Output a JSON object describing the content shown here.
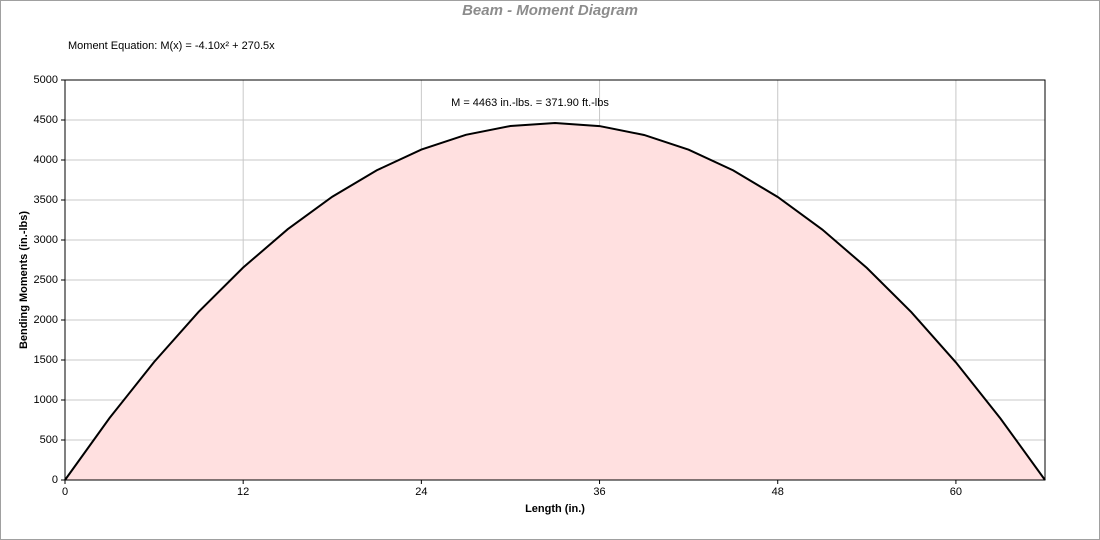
{
  "chart_data": {
    "type": "area",
    "title": "Beam - Moment Diagram",
    "equation": "Moment Equation:  M(x) = -4.10x² + 270.5x",
    "annotation": "M = 4463 in.-lbs. = 371.90 ft.-lbs",
    "x_label": "Length (in.)",
    "y_label": "Bending Moments (in.-lbs)",
    "x": [
      0,
      3,
      6,
      9,
      12,
      15,
      18,
      21,
      24,
      27,
      30,
      33,
      36,
      39,
      42,
      45,
      48,
      51,
      54,
      57,
      60,
      63,
      66
    ],
    "values": [
      0,
      775,
      1475,
      2102,
      2656,
      3135,
      3541,
      3872,
      4130,
      4315,
      4425,
      4462,
      4424,
      4313,
      4129,
      3870,
      3538,
      3131,
      2651,
      2098,
      1470,
      769,
      0
    ],
    "line_color": "#000000",
    "fill_color": "#ffe0e0",
    "xlim": [
      0,
      66
    ],
    "xticks": [
      0,
      12,
      24,
      36,
      48,
      60
    ],
    "ylim": [
      0,
      5000
    ],
    "yticks": [
      0,
      500,
      1000,
      1500,
      2000,
      2500,
      3000,
      3500,
      4000,
      4500,
      5000
    ],
    "grid": true
  }
}
